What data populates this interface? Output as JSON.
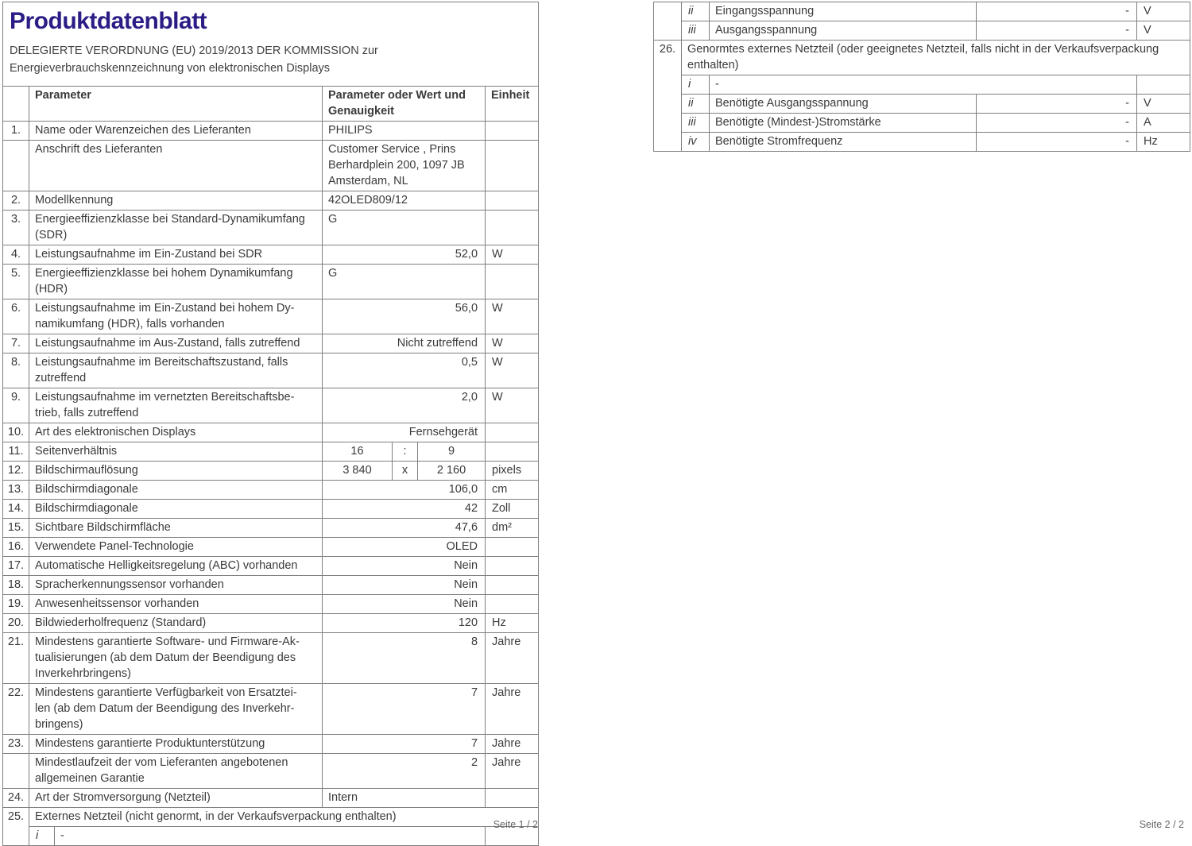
{
  "colors": {
    "title": "#2b1d86",
    "border": "#7f7f7f",
    "text": "#3a3a3a"
  },
  "page1": {
    "title": "Produktdatenblatt",
    "subtitle": "DELEGIERTE VERORDNUNG (EU) 2019/2013 DER KOMMISSION zur\nEnergieverbrauchskennzeichnung von elektronischen Displays",
    "header": {
      "num": "",
      "parameter": "Parameter",
      "value": "Parameter oder Wert und\nGenauigkeit",
      "unit": "Einheit"
    },
    "footer": "Seite 1 / 2",
    "rows": [
      [
        {
          "t": "1.",
          "c": "num"
        },
        {
          "t": "Name oder Warenzeichen des Lieferanten",
          "c": "label",
          "cs": 2
        },
        {
          "t": "PHILIPS",
          "c": "left",
          "cs": 3
        },
        {
          "t": "",
          "c": "unit"
        }
      ],
      [
        {
          "t": "",
          "c": "num"
        },
        {
          "t": "Anschrift des Lieferanten",
          "c": "label",
          "cs": 2
        },
        {
          "t": "Customer Service , Prins\nBerhardplein 200, 1097 JB\nAmsterdam, NL",
          "c": "left",
          "cs": 3
        },
        {
          "t": "",
          "c": "unit"
        }
      ],
      [
        {
          "t": "2.",
          "c": "num"
        },
        {
          "t": "Modellkennung",
          "c": "label",
          "cs": 2
        },
        {
          "t": "42OLED809/12",
          "c": "left",
          "cs": 3
        },
        {
          "t": "",
          "c": "unit"
        }
      ],
      [
        {
          "t": "3.",
          "c": "num"
        },
        {
          "t": "Energieeffizienzklasse bei Standard-Dynamikumfang\n(SDR)",
          "c": "label",
          "cs": 2
        },
        {
          "t": "G",
          "c": "left",
          "cs": 3
        },
        {
          "t": "",
          "c": "unit"
        }
      ],
      [
        {
          "t": "4.",
          "c": "num"
        },
        {
          "t": "Leistungsaufnahme im Ein-Zustand bei SDR",
          "c": "label",
          "cs": 2
        },
        {
          "t": "52,0",
          "c": "right",
          "cs": 3
        },
        {
          "t": "W",
          "c": "unit"
        }
      ],
      [
        {
          "t": "5.",
          "c": "num"
        },
        {
          "t": "Energieeffizienzklasse bei hohem Dynamikumfang\n(HDR)",
          "c": "label",
          "cs": 2
        },
        {
          "t": "G",
          "c": "left",
          "cs": 3
        },
        {
          "t": "",
          "c": "unit"
        }
      ],
      [
        {
          "t": "6.",
          "c": "num"
        },
        {
          "t": "Leistungsaufnahme im Ein-Zustand bei hohem Dy-\nnamikumfang (HDR), falls vorhanden",
          "c": "label",
          "cs": 2
        },
        {
          "t": "56,0",
          "c": "right",
          "cs": 3
        },
        {
          "t": "W",
          "c": "unit"
        }
      ],
      [
        {
          "t": "7.",
          "c": "num"
        },
        {
          "t": "Leistungsaufnahme im Aus-Zustand, falls zutreffend",
          "c": "label",
          "cs": 2
        },
        {
          "t": "Nicht zutreffend",
          "c": "right",
          "cs": 3
        },
        {
          "t": "W",
          "c": "unit"
        }
      ],
      [
        {
          "t": "8.",
          "c": "num"
        },
        {
          "t": "Leistungsaufnahme im Bereitschaftszustand, falls\nzutreffend",
          "c": "label",
          "cs": 2
        },
        {
          "t": "0,5",
          "c": "right",
          "cs": 3
        },
        {
          "t": "W",
          "c": "unit"
        }
      ],
      [
        {
          "t": "9.",
          "c": "num"
        },
        {
          "t": "Leistungsaufnahme im vernetzten Bereitschaftsbe-\ntrieb, falls zutreffend",
          "c": "label",
          "cs": 2
        },
        {
          "t": "2,0",
          "c": "right",
          "cs": 3
        },
        {
          "t": "W",
          "c": "unit"
        }
      ],
      [
        {
          "t": "10.",
          "c": "num"
        },
        {
          "t": "Art des elektronischen Displays",
          "c": "label",
          "cs": 2
        },
        {
          "t": "Fernsehgerät",
          "c": "right",
          "cs": 3
        },
        {
          "t": "",
          "c": "unit"
        }
      ],
      [
        {
          "t": "11.",
          "c": "num"
        },
        {
          "t": "Seitenverhältnis",
          "c": "label",
          "cs": 2
        },
        {
          "t": "16",
          "c": "center"
        },
        {
          "t": ":",
          "c": "center"
        },
        {
          "t": "9",
          "c": "center"
        },
        {
          "t": "",
          "c": "unit"
        }
      ],
      [
        {
          "t": "12.",
          "c": "num"
        },
        {
          "t": "Bildschirmauflösung",
          "c": "label",
          "cs": 2
        },
        {
          "t": "3 840",
          "c": "center"
        },
        {
          "t": "x",
          "c": "center"
        },
        {
          "t": "2 160",
          "c": "center"
        },
        {
          "t": "pixels",
          "c": "unit"
        }
      ],
      [
        {
          "t": "13.",
          "c": "num"
        },
        {
          "t": "Bildschirmdiagonale",
          "c": "label",
          "cs": 2
        },
        {
          "t": "106,0",
          "c": "right",
          "cs": 3
        },
        {
          "t": "cm",
          "c": "unit"
        }
      ],
      [
        {
          "t": "14.",
          "c": "num"
        },
        {
          "t": "Bildschirmdiagonale",
          "c": "label",
          "cs": 2
        },
        {
          "t": "42",
          "c": "right",
          "cs": 3
        },
        {
          "t": "Zoll",
          "c": "unit"
        }
      ],
      [
        {
          "t": "15.",
          "c": "num"
        },
        {
          "t": "Sichtbare Bildschirmfläche",
          "c": "label",
          "cs": 2
        },
        {
          "t": "47,6",
          "c": "right",
          "cs": 3
        },
        {
          "t": "dm²",
          "c": "unit"
        }
      ],
      [
        {
          "t": "16.",
          "c": "num"
        },
        {
          "t": "Verwendete Panel-Technologie",
          "c": "label",
          "cs": 2
        },
        {
          "t": "OLED",
          "c": "right",
          "cs": 3
        },
        {
          "t": "",
          "c": "unit"
        }
      ],
      [
        {
          "t": "17.",
          "c": "num"
        },
        {
          "t": "Automatische Helligkeitsregelung (ABC) vorhanden",
          "c": "label",
          "cs": 2
        },
        {
          "t": "Nein",
          "c": "right",
          "cs": 3
        },
        {
          "t": "",
          "c": "unit"
        }
      ],
      [
        {
          "t": "18.",
          "c": "num"
        },
        {
          "t": "Spracherkennungssensor vorhanden",
          "c": "label",
          "cs": 2
        },
        {
          "t": "Nein",
          "c": "right",
          "cs": 3
        },
        {
          "t": "",
          "c": "unit"
        }
      ],
      [
        {
          "t": "19.",
          "c": "num"
        },
        {
          "t": "Anwesenheitssensor vorhanden",
          "c": "label",
          "cs": 2
        },
        {
          "t": "Nein",
          "c": "right",
          "cs": 3
        },
        {
          "t": "",
          "c": "unit"
        }
      ],
      [
        {
          "t": "20.",
          "c": "num"
        },
        {
          "t": "Bildwiederholfrequenz (Standard)",
          "c": "label",
          "cs": 2
        },
        {
          "t": "120",
          "c": "right",
          "cs": 3
        },
        {
          "t": "Hz",
          "c": "unit"
        }
      ],
      [
        {
          "t": "21.",
          "c": "num"
        },
        {
          "t": "Mindestens garantierte Software- und Firmware-Ak-\ntualisierungen (ab dem Datum der Beendigung des\nInverkehrbringens)",
          "c": "label",
          "cs": 2
        },
        {
          "t": "8",
          "c": "right",
          "cs": 3
        },
        {
          "t": "Jahre",
          "c": "unit"
        }
      ],
      [
        {
          "t": "22.",
          "c": "num"
        },
        {
          "t": "Mindestens garantierte Verfügbarkeit von Ersatztei-\nlen (ab dem Datum der Beendigung des Inverkehr-\nbringens)",
          "c": "label",
          "cs": 2
        },
        {
          "t": "7",
          "c": "right",
          "cs": 3
        },
        {
          "t": "Jahre",
          "c": "unit"
        }
      ],
      [
        {
          "t": "23.",
          "c": "num"
        },
        {
          "t": "Mindestens garantierte Produktunterstützung",
          "c": "label",
          "cs": 2
        },
        {
          "t": "7",
          "c": "right",
          "cs": 3
        },
        {
          "t": "Jahre",
          "c": "unit"
        }
      ],
      [
        {
          "t": "",
          "c": "num"
        },
        {
          "t": "Mindestlaufzeit der vom Lieferanten angebotenen\nallgemeinen Garantie",
          "c": "label",
          "cs": 2
        },
        {
          "t": "2",
          "c": "right",
          "cs": 3
        },
        {
          "t": "Jahre",
          "c": "unit"
        }
      ],
      [
        {
          "t": "24.",
          "c": "num"
        },
        {
          "t": "Art der Stromversorgung (Netzteil)",
          "c": "label",
          "cs": 2
        },
        {
          "t": "Intern",
          "c": "left",
          "cs": 3
        },
        {
          "t": "",
          "c": "unit"
        }
      ],
      [
        {
          "t": "25.",
          "c": "num",
          "rs": 2
        },
        {
          "t": "Externes Netzteil (nicht genormt, in der Verkaufsverpackung enthalten)",
          "c": "label",
          "cs": 6
        }
      ],
      [
        {
          "t": "i",
          "c": "sub"
        },
        {
          "t": "-",
          "c": "left",
          "cs": 4
        },
        {
          "t": "",
          "c": "unit"
        }
      ]
    ]
  },
  "page2": {
    "footer": "Seite 2 / 2",
    "rows": [
      [
        {
          "t": "",
          "c": "num",
          "rs": 2
        },
        {
          "t": "ii",
          "c": "sub"
        },
        {
          "t": "Eingangsspannung",
          "c": "label"
        },
        {
          "t": "-",
          "c": "right"
        },
        {
          "t": "V",
          "c": "unit"
        }
      ],
      [
        {
          "t": "iii",
          "c": "sub"
        },
        {
          "t": "Ausgangsspannung",
          "c": "label"
        },
        {
          "t": "-",
          "c": "right"
        },
        {
          "t": "V",
          "c": "unit"
        }
      ],
      [
        {
          "t": "26.",
          "c": "num",
          "rs": 5
        },
        {
          "t": "Genormtes externes Netzteil (oder geeignetes Netzteil, falls nicht in der Verkaufsverpackung\nenthalten)",
          "c": "label",
          "cs": 4
        }
      ],
      [
        {
          "t": "i",
          "c": "sub"
        },
        {
          "t": "-",
          "c": "left",
          "cs": 2
        },
        {
          "t": "",
          "c": "unit"
        }
      ],
      [
        {
          "t": "ii",
          "c": "sub"
        },
        {
          "t": "Benötigte Ausgangsspannung",
          "c": "label"
        },
        {
          "t": "-",
          "c": "right"
        },
        {
          "t": "V",
          "c": "unit"
        }
      ],
      [
        {
          "t": "iii",
          "c": "sub"
        },
        {
          "t": "Benötigte (Mindest-)Stromstärke",
          "c": "label"
        },
        {
          "t": "-",
          "c": "right"
        },
        {
          "t": "A",
          "c": "unit"
        }
      ],
      [
        {
          "t": "iv",
          "c": "sub"
        },
        {
          "t": "Benötigte Stromfrequenz",
          "c": "label"
        },
        {
          "t": "-",
          "c": "right"
        },
        {
          "t": "Hz",
          "c": "unit"
        }
      ]
    ]
  }
}
